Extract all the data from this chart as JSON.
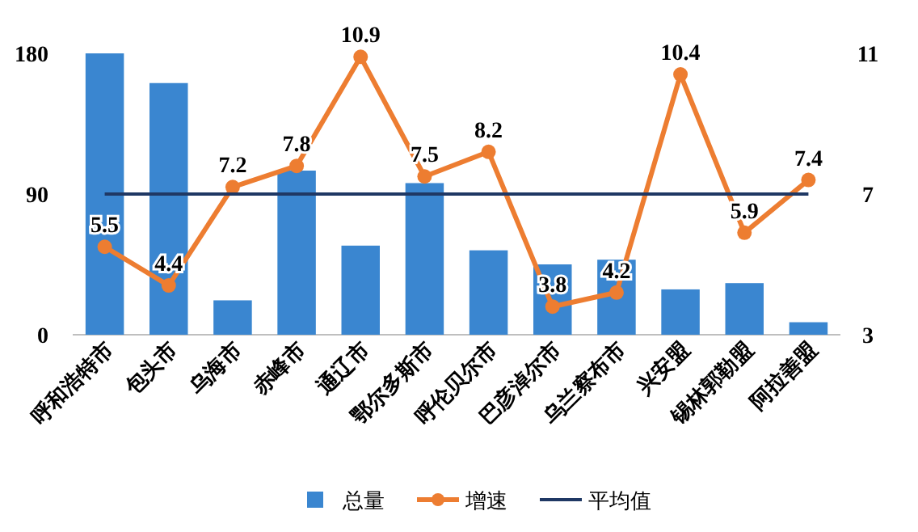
{
  "chart_data": {
    "type": "bar",
    "categories": [
      "呼和浩特市",
      "包头市",
      "乌海市",
      "赤峰市",
      "通辽市",
      "鄂尔多斯市",
      "呼伦贝尔市",
      "巴彦淖尔市",
      "乌兰察布市",
      "兴安盟",
      "锡林郭勒盟",
      "阿拉善盟"
    ],
    "series": [
      {
        "name": "总量",
        "color": "#3a86d0",
        "values": [
          180,
          161,
          22,
          105,
          57,
          97,
          54,
          45,
          48,
          29,
          33,
          8
        ]
      },
      {
        "name": "增速",
        "type": "line",
        "axis": "y2",
        "color": "#ed7d31",
        "marker": "circle",
        "values": [
          5.5,
          4.4,
          7.2,
          7.8,
          10.9,
          7.5,
          8.2,
          3.8,
          4.2,
          10.4,
          5.9,
          7.4
        ],
        "value_labels": [
          "5.5",
          "4.4",
          "7.2",
          "7.8",
          "10.9",
          "7.5",
          "8.2",
          "3.8",
          "4.2",
          "10.4",
          "5.9",
          "7.4"
        ]
      }
    ],
    "ylim": [
      0,
      180
    ],
    "yticks": [
      0,
      90,
      180
    ],
    "y2lim": [
      3,
      11
    ],
    "y2ticks": [
      3,
      7,
      11
    ],
    "ref_lines": [
      {
        "axis": "y2",
        "value": 7,
        "label": "平均值",
        "color": "#1f3864"
      }
    ],
    "legend": "bottom",
    "grid": false
  }
}
